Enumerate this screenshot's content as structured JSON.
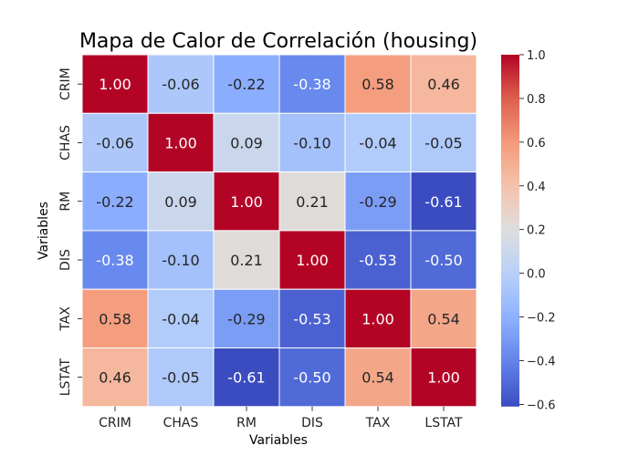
{
  "chart_data": {
    "type": "heatmap",
    "title": "Mapa de Calor de Correlación (housing)",
    "xlabel": "Variables",
    "ylabel": "Variables",
    "x_categories": [
      "CRIM",
      "CHAS",
      "RM",
      "DIS",
      "TAX",
      "LSTAT"
    ],
    "y_categories": [
      "CRIM",
      "CHAS",
      "RM",
      "DIS",
      "TAX",
      "LSTAT"
    ],
    "values": [
      [
        1.0,
        -0.06,
        -0.22,
        -0.38,
        0.58,
        0.46
      ],
      [
        -0.06,
        1.0,
        0.09,
        -0.1,
        -0.04,
        -0.05
      ],
      [
        -0.22,
        0.09,
        1.0,
        0.21,
        -0.29,
        -0.61
      ],
      [
        -0.38,
        -0.1,
        0.21,
        1.0,
        -0.53,
        -0.5
      ],
      [
        0.58,
        -0.04,
        -0.29,
        -0.53,
        1.0,
        0.54
      ],
      [
        0.46,
        -0.05,
        -0.61,
        -0.5,
        0.54,
        1.0
      ]
    ],
    "value_format": "0.00",
    "colormap": "coolwarm",
    "color_range": [
      -0.61,
      1.0
    ],
    "colorbar_ticks": [
      "1.0",
      "0.8",
      "0.6",
      "0.4",
      "0.2",
      "0.0",
      "−0.2",
      "−0.4",
      "−0.6"
    ],
    "colorbar_tick_values": [
      1.0,
      0.8,
      0.6,
      0.4,
      0.2,
      0.0,
      -0.2,
      -0.4,
      -0.6
    ],
    "grid_color": "#ffffff"
  }
}
